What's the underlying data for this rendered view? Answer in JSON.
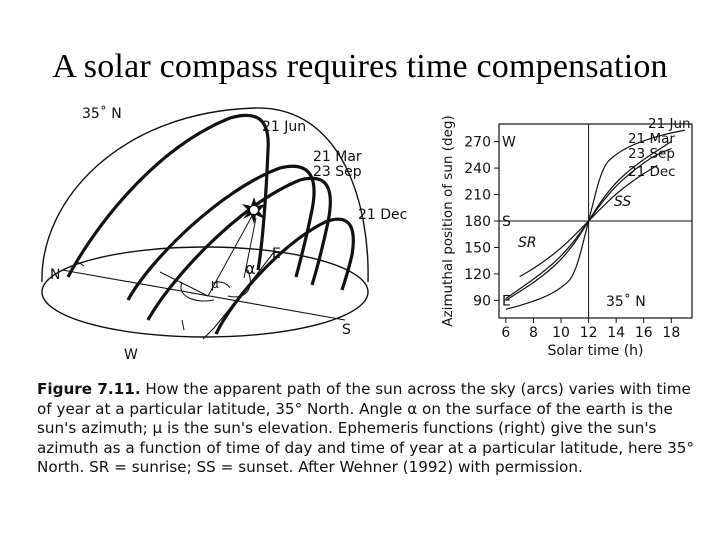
{
  "slide": {
    "title": "A solar compass requires time compensation"
  },
  "hemisphere": {
    "latitude_label": "35˚ N",
    "path_labels": [
      "21 Jun",
      "21 Mar",
      "23 Sep",
      "21 Dec"
    ],
    "cardinals": {
      "north": "N",
      "east": "E",
      "south": "S",
      "west": "W"
    },
    "azimuth_symbol": "α",
    "elevation_symbol": "μ"
  },
  "chart_data": {
    "type": "line",
    "title": "",
    "xlabel": "Solar time (h)",
    "ylabel": "Azimuthal position of sun (deg)",
    "xlim": [
      5.5,
      19.5
    ],
    "ylim": [
      70,
      290
    ],
    "x_ticks": [
      6,
      8,
      10,
      12,
      14,
      16,
      18
    ],
    "y_ticks": [
      90,
      120,
      150,
      180,
      210,
      240,
      270
    ],
    "direction_labels": [
      {
        "label": "W",
        "y": 270
      },
      {
        "label": "S",
        "y": 180
      },
      {
        "label": "E",
        "y": 90
      }
    ],
    "region_labels": [
      "SS",
      "SR"
    ],
    "corner_label": "35˚ N",
    "series": [
      {
        "name": "21 Jun",
        "x": [
          6,
          7,
          8,
          9,
          10,
          11,
          12,
          13,
          14,
          15,
          16,
          17,
          18,
          19
        ],
        "y": [
          80,
          84,
          89,
          95,
          104,
          118,
          180,
          242,
          256,
          265,
          271,
          276,
          280,
          283
        ]
      },
      {
        "name": "21 Mar",
        "x": [
          6,
          7,
          8,
          9,
          10,
          11,
          12,
          13,
          14,
          15,
          16,
          17,
          18
        ],
        "y": [
          90,
          100,
          110,
          122,
          136,
          155,
          180,
          205,
          224,
          238,
          250,
          260,
          270
        ]
      },
      {
        "name": "23 Sep",
        "x": [
          6,
          7,
          8,
          9,
          10,
          11,
          12,
          13,
          14,
          15,
          16,
          17,
          18
        ],
        "y": [
          92,
          103,
          114,
          126,
          140,
          158,
          180,
          202,
          220,
          234,
          246,
          256,
          262
        ]
      },
      {
        "name": "21 Dec",
        "x": [
          7,
          8,
          9,
          10,
          11,
          12,
          13,
          14,
          15,
          16,
          17
        ],
        "y": [
          117,
          126,
          137,
          149,
          164,
          180,
          196,
          211,
          223,
          234,
          243
        ]
      }
    ]
  },
  "caption": {
    "figure_label": "Figure 7.11.",
    "text": "How the apparent path of the sun across the sky (arcs) varies with time of year at a particular latitude, 35° North. Angle α on the surface of the earth is the sun's azimuth; μ is the sun's elevation. Ephemeris functions (right) give the sun's azimuth as a function of time of day and time of year at a particular latitude, here 35° North. SR = sunrise; SS = sunset. After Wehner (1992) with permission."
  }
}
